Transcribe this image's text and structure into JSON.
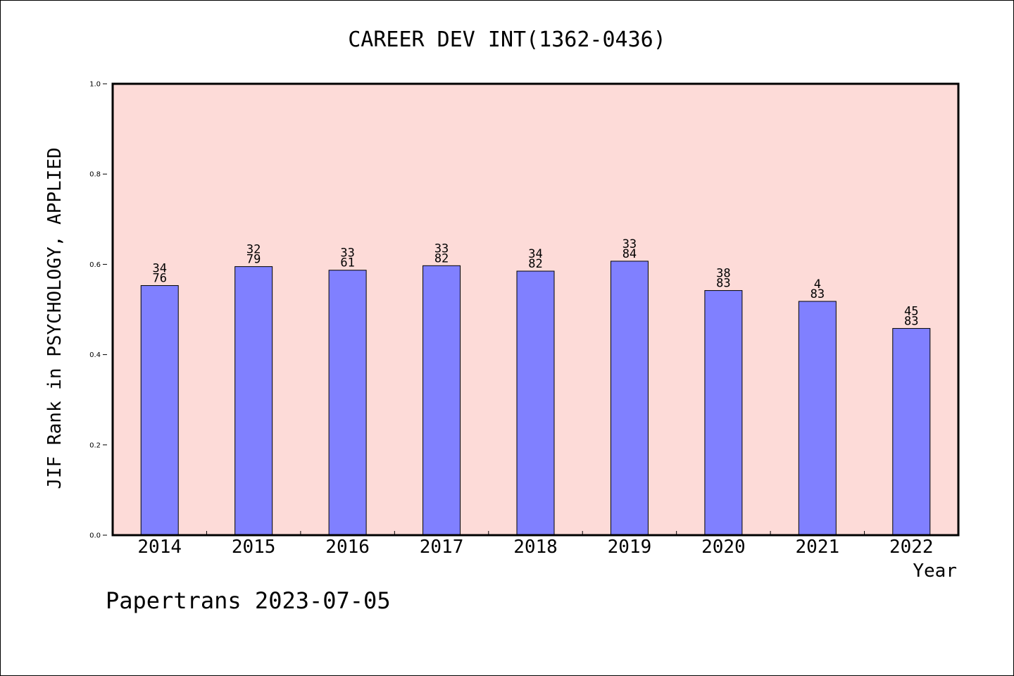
{
  "chart_data": {
    "type": "bar",
    "title": "CAREER DEV INT(1362-0436)",
    "ylabel": "JIF Rank in PSYCHOLOGY, APPLIED",
    "xlabel": "Year",
    "ylim": [
      0.0,
      1.0
    ],
    "yticks": [
      "0.0",
      "0.2",
      "0.4",
      "0.6",
      "0.8",
      "1.0"
    ],
    "grid": false,
    "categories": [
      "2014",
      "2015",
      "2016",
      "2017",
      "2018",
      "2019",
      "2020",
      "2021",
      "2022"
    ],
    "values": [
      0.553,
      0.595,
      0.587,
      0.597,
      0.585,
      0.607,
      0.542,
      0.518,
      0.458
    ],
    "labels_top": [
      "34",
      "32",
      "33",
      "33",
      "34",
      "33",
      "38",
      "4",
      "45"
    ],
    "labels_bottom": [
      "76",
      "79",
      "61",
      "82",
      "82",
      "84",
      "83",
      "83",
      "83"
    ],
    "colors": {
      "bar": "#8080ff",
      "plot_bg": "#fddbd8",
      "axis": "#000000"
    }
  },
  "footer": {
    "watermark": "Papertrans 2023-07-05"
  }
}
